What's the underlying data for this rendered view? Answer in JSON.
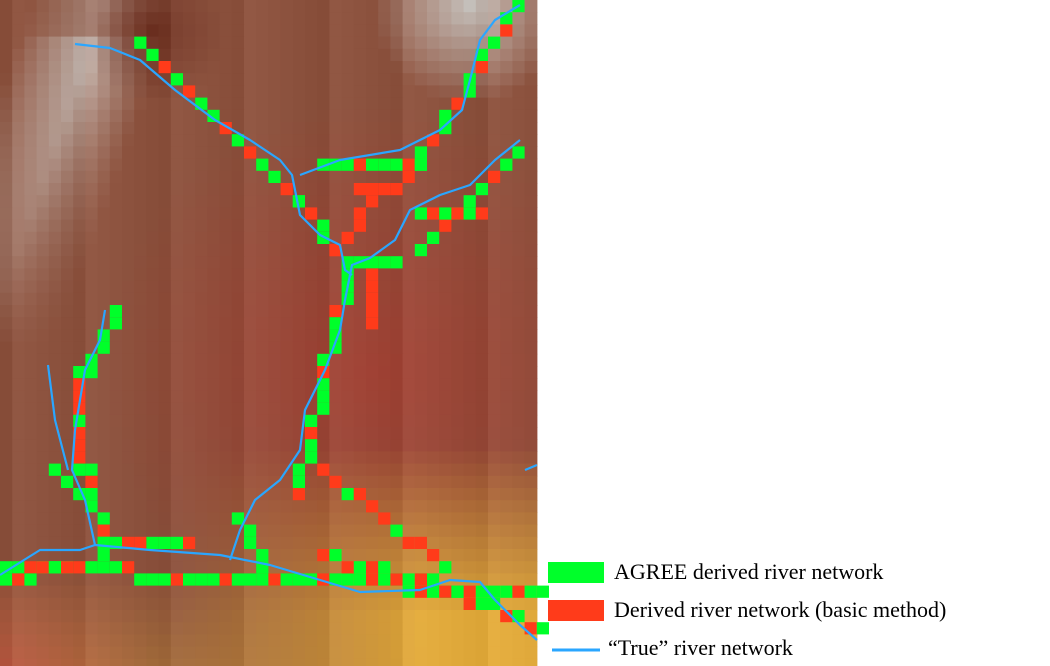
{
  "legend": {
    "items": [
      {
        "label": "AGREE derived river network",
        "color": "#00ff2a"
      },
      {
        "label": "Derived river network (basic method)",
        "color": "#ff3b1a"
      },
      {
        "label": "“True” river network",
        "color": "#2aa6ff"
      }
    ]
  }
}
